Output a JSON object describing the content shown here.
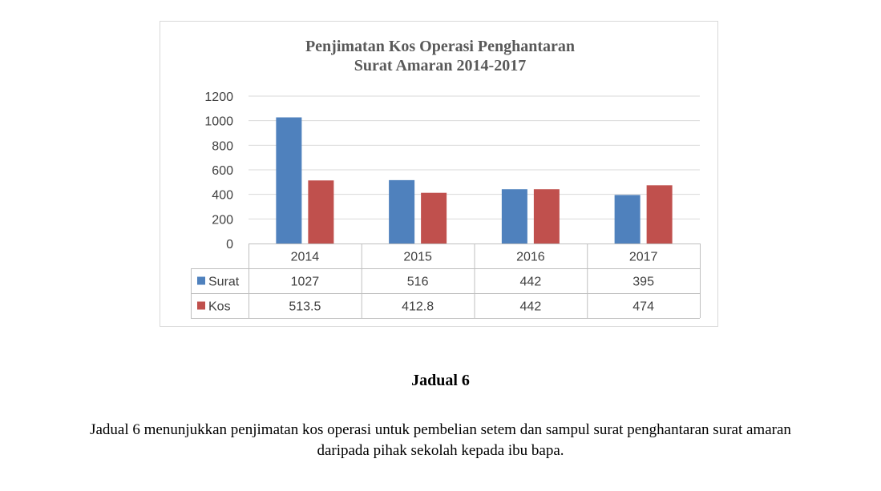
{
  "chart_data": {
    "type": "bar",
    "title_lines": [
      "Penjimatan Kos Operasi Penghantaran",
      "Surat Amaran  2014-2017"
    ],
    "categories": [
      "2014",
      "2015",
      "2016",
      "2017"
    ],
    "series": [
      {
        "name": "Surat",
        "values": [
          1027,
          516,
          442,
          395
        ],
        "labels": [
          "1027",
          "516",
          "442",
          "395"
        ],
        "color": "#4f81bd"
      },
      {
        "name": "Kos",
        "values": [
          513.5,
          412.8,
          442,
          474
        ],
        "labels": [
          "513.5",
          "412.8",
          "442",
          "474"
        ],
        "color": "#c0504d"
      }
    ],
    "ylim": [
      0,
      1200
    ],
    "yticks": [
      0,
      200,
      400,
      600,
      800,
      1000,
      1200
    ],
    "grid": true,
    "legend": "data-table-left"
  },
  "caption": "Jadual 6",
  "description": {
    "line1": "Jadual 6 menunjukkan penjimatan kos operasi untuk pembelian setem dan sampul surat  penghantaran surat amaran",
    "line2": "daripada pihak sekolah kepada ibu bapa."
  }
}
